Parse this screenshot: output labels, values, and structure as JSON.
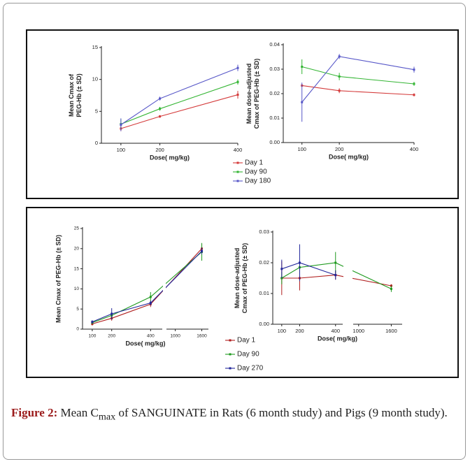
{
  "figure": {
    "panels": [
      {
        "legend": [
          {
            "name": "Day 1",
            "color": "#d43a3a"
          },
          {
            "name": "Day 90",
            "color": "#33b533"
          },
          {
            "name": "Day 180",
            "color": "#5757c8"
          }
        ],
        "charts": [
          {
            "type": "line",
            "ylabel": [
              "Mean Cmax of",
              "PEG-Hb (± SD)"
            ],
            "xlabel": "Dose( mg/kg)",
            "x": [
              100,
              200,
              400
            ],
            "xlim": [
              50,
              400
            ],
            "xticks": [
              100,
              200,
              400
            ],
            "ylim": [
              0,
              15
            ],
            "yticks": [
              0,
              5,
              10,
              15
            ],
            "series": [
              {
                "values": [
                  2.3,
                  4.2,
                  7.6
                ],
                "errors": [
                  0.4,
                  0.2,
                  0.6
                ]
              },
              {
                "values": [
                  3.0,
                  5.4,
                  9.6
                ],
                "errors": [
                  0.8,
                  0.3,
                  0.4
                ]
              },
              {
                "values": [
                  2.9,
                  7.0,
                  11.8
                ],
                "errors": [
                  1.0,
                  0.3,
                  0.5
                ]
              }
            ]
          },
          {
            "type": "line",
            "ylabel": [
              "Mean dose-adjusted",
              "Cmax of PEG-Hb (± SD)"
            ],
            "xlabel": "Dose( mg/kg)",
            "x": [
              100,
              200,
              400
            ],
            "xlim": [
              50,
              400
            ],
            "xticks": [
              100,
              200,
              400
            ],
            "ylim": [
              0,
              0.04
            ],
            "yticks": [
              {
                "value": 0,
                "label": "0.00"
              },
              0.01,
              0.02,
              0.03,
              0.04
            ],
            "series": [
              {
                "values": [
                  0.0233,
                  0.0212,
                  0.0195
                ],
                "errors": [
                  0.0005,
                  0.001,
                  0.0006
                ]
              },
              {
                "values": [
                  0.031,
                  0.027,
                  0.024
                ],
                "errors": [
                  0.003,
                  0.0015,
                  0.0008
                ]
              },
              {
                "values": [
                  0.0165,
                  0.0352,
                  0.0298
                ],
                "errors": [
                  0.008,
                  0.001,
                  0.0012
                ]
              }
            ]
          }
        ]
      },
      {
        "legend": [
          {
            "name": "Day 1",
            "color": "#b01e1e"
          },
          {
            "name": "Day 90",
            "color": "#1f9a1f"
          },
          {
            "name": "Day 270",
            "color": "#22279a"
          }
        ],
        "charts": [
          {
            "type": "line",
            "ylabel": [
              "Mean Cmax of PEG-Hb (± SD)"
            ],
            "xlabel": "Dose( mg/kg)",
            "x": [
              100,
              200,
              400,
              1600
            ],
            "xlim": [
              [
                50,
                460
              ],
              [
                800,
                1750
              ]
            ],
            "xticks": [
              100,
              200,
              400,
              1000,
              1600
            ],
            "ylim": [
              0,
              25
            ],
            "yticks": [
              0,
              5,
              10,
              15,
              20,
              25
            ],
            "series": [
              {
                "values": [
                  1.3,
                  2.7,
                  6.2,
                  20.0
                ],
                "errors": [
                  0.4,
                  0.6,
                  0.7,
                  1.2
                ]
              },
              {
                "values": [
                  1.6,
                  3.4,
                  8.0,
                  19.2
                ],
                "errors": [
                  0.3,
                  0.8,
                  1.2,
                  2.2
                ]
              },
              {
                "values": [
                  1.8,
                  3.8,
                  6.5,
                  19.4
                ],
                "errors": [
                  0.4,
                  1.4,
                  0.6,
                  0.8
                ]
              }
            ]
          },
          {
            "type": "line",
            "ylabel": [
              "Mean dose-adjusted",
              "Cmax of PEG-Hb (± SD)"
            ],
            "xlabel": "Dose( mg/kg)",
            "x": [
              100,
              200,
              400,
              1600
            ],
            "xlim": [
              [
                50,
                440
              ],
              [
                900,
                1800
              ]
            ],
            "xticks": [
              100,
              200,
              400,
              1000,
              1600
            ],
            "ylim": [
              0,
              0.03
            ],
            "yticks": [
              {
                "value": 0,
                "label": "0.00"
              },
              0.01,
              0.02,
              0.03
            ],
            "series": [
              {
                "values": [
                  0.015,
                  0.015,
                  0.016,
                  0.0125
                ],
                "errors": [
                  0.0055,
                  0.004,
                  0.0015,
                  0.0005
                ]
              },
              {
                "values": [
                  0.015,
                  0.0185,
                  0.02,
                  0.0115
                ],
                "errors": [
                  0.002,
                  0.002,
                  0.0035,
                  0.001
                ]
              },
              {
                "values": [
                  0.018,
                  0.02,
                  0.016,
                  null
                ],
                "errors": [
                  0.003,
                  0.006,
                  0.0015,
                  null
                ]
              }
            ]
          }
        ]
      }
    ],
    "caption": {
      "label": "Figure 2:",
      "text": " Mean C",
      "sub": "max",
      "rest": " of SANGUINATE in Rats (6 month study) and Pigs (9 month study)."
    }
  }
}
